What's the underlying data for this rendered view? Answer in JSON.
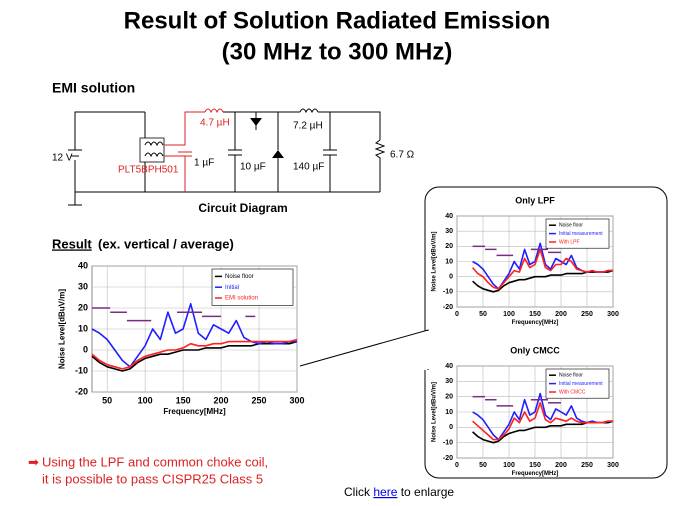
{
  "title": [
    "Result of Solution Radiated Emission",
    "(30 MHz to 300 MHz)"
  ],
  "circuit": {
    "heading": "EMI solution",
    "caption": "Circuit Diagram",
    "labels": {
      "source": "12 V",
      "choke": "PLT5BPH501",
      "l1": "4.7 µH",
      "c1": "1 µF",
      "l2": "7.2 µH",
      "c2": "10 µF",
      "c3": "140 µF",
      "load": "6.7 Ω"
    }
  },
  "result_heading": {
    "underlined": "Result",
    "rest": " (ex. vertical / average)"
  },
  "bullet": [
    "Using the LPF and common choke coil,",
    "it is possible to pass CISPR25 Class 5"
  ],
  "footer": {
    "before": "Click ",
    "link": "here",
    "after": " to enlarge"
  },
  "chart_data": [
    {
      "type": "line",
      "xlabel": "Frequency[MHz]",
      "ylabel": "Noise Level[dBuV/m]",
      "xlim": [
        30,
        300
      ],
      "xticks": [
        50,
        100,
        150,
        200,
        250,
        300
      ],
      "ylim": [
        -20,
        40
      ],
      "yticks": [
        -20,
        -10,
        0,
        10,
        20,
        30,
        40
      ],
      "grid": true,
      "x": [
        30,
        40,
        50,
        60,
        70,
        80,
        90,
        100,
        110,
        120,
        130,
        140,
        150,
        160,
        170,
        180,
        190,
        200,
        210,
        220,
        230,
        240,
        250,
        260,
        270,
        280,
        290,
        300
      ],
      "series": [
        {
          "name": "Noise floor",
          "color": "#000000",
          "values": [
            -3,
            -6,
            -8,
            -9,
            -10,
            -9,
            -6,
            -4,
            -3,
            -2,
            -2,
            -1,
            0,
            0,
            0,
            1,
            1,
            1,
            2,
            2,
            2,
            2,
            3,
            3,
            3,
            3,
            3,
            4
          ]
        },
        {
          "name": "Initial",
          "color": "#1f1fff",
          "values": [
            10,
            8,
            5,
            0,
            -5,
            -8,
            -3,
            2,
            10,
            5,
            18,
            8,
            10,
            22,
            8,
            5,
            12,
            10,
            8,
            14,
            6,
            4,
            3,
            4,
            3,
            3,
            4,
            4
          ]
        },
        {
          "name": "EMI solution",
          "color": "#ff2020",
          "values": [
            -2,
            -5,
            -7,
            -8,
            -9,
            -8,
            -5,
            -3,
            -2,
            -1,
            0,
            0,
            1,
            3,
            2,
            2,
            3,
            3,
            4,
            4,
            4,
            4,
            4,
            4,
            4,
            4,
            4,
            5
          ]
        }
      ],
      "limit_color": "#7a2a8a",
      "limits": [
        {
          "x": [
            30,
            54
          ],
          "y": 20
        },
        {
          "x": [
            54,
            76
          ],
          "y": 18
        },
        {
          "x": [
            76,
            108
          ],
          "y": 14
        },
        {
          "x": [
            142,
            175
          ],
          "y": 18
        },
        {
          "x": [
            175,
            200
          ],
          "y": 16
        },
        {
          "x": [
            200,
            232
          ],
          "y": 22
        },
        {
          "x": [
            232,
            245
          ],
          "y": 16
        }
      ]
    },
    {
      "type": "line",
      "title": "Only LPF",
      "xlabel": "Frequency[MHz]",
      "ylabel": "Noise Level[dBuV/m]",
      "xlim": [
        0,
        300
      ],
      "xticks": [
        0,
        50,
        100,
        150,
        200,
        250,
        300
      ],
      "ylim": [
        -20,
        40
      ],
      "yticks": [
        -20,
        -10,
        0,
        10,
        20,
        30,
        40
      ],
      "grid": true,
      "x": [
        30,
        40,
        50,
        60,
        70,
        80,
        90,
        100,
        110,
        120,
        130,
        140,
        150,
        160,
        170,
        180,
        190,
        200,
        210,
        220,
        230,
        240,
        250,
        260,
        270,
        280,
        290,
        300
      ],
      "series": [
        {
          "name": "Noise floor",
          "color": "#000000",
          "values": [
            -3,
            -6,
            -8,
            -9,
            -10,
            -9,
            -6,
            -4,
            -3,
            -2,
            -2,
            -1,
            0,
            0,
            0,
            1,
            1,
            1,
            2,
            2,
            2,
            2,
            3,
            3,
            3,
            3,
            3,
            4
          ]
        },
        {
          "name": "Initial measurement",
          "color": "#1f1fff",
          "values": [
            10,
            8,
            5,
            0,
            -5,
            -8,
            -3,
            2,
            10,
            5,
            18,
            8,
            10,
            22,
            8,
            5,
            12,
            10,
            8,
            14,
            6,
            4,
            3,
            4,
            3,
            3,
            4,
            4
          ]
        },
        {
          "name": "With LPF",
          "color": "#ff2020",
          "values": [
            6,
            2,
            0,
            -4,
            -7,
            -8,
            -4,
            0,
            4,
            3,
            12,
            6,
            8,
            18,
            6,
            4,
            8,
            8,
            12,
            10,
            5,
            4,
            3,
            4,
            3,
            3,
            4,
            4
          ]
        }
      ],
      "limit_color": "#7a2a8a",
      "limits": [
        {
          "x": [
            30,
            54
          ],
          "y": 20
        },
        {
          "x": [
            54,
            76
          ],
          "y": 18
        },
        {
          "x": [
            76,
            108
          ],
          "y": 14
        },
        {
          "x": [
            142,
            175
          ],
          "y": 18
        },
        {
          "x": [
            175,
            200
          ],
          "y": 16
        },
        {
          "x": [
            200,
            232
          ],
          "y": 22
        }
      ]
    },
    {
      "type": "line",
      "title": "Only CMCC",
      "xlabel": "Frequency[MHz]",
      "ylabel": "Noise Level[dBuV/m]",
      "xlim": [
        0,
        300
      ],
      "xticks": [
        0,
        50,
        100,
        150,
        200,
        250,
        300
      ],
      "ylim": [
        -20,
        40
      ],
      "yticks": [
        -20,
        -10,
        0,
        10,
        20,
        30,
        40
      ],
      "grid": true,
      "x": [
        30,
        40,
        50,
        60,
        70,
        80,
        90,
        100,
        110,
        120,
        130,
        140,
        150,
        160,
        170,
        180,
        190,
        200,
        210,
        220,
        230,
        240,
        250,
        260,
        270,
        280,
        290,
        300
      ],
      "series": [
        {
          "name": "Noise floor",
          "color": "#000000",
          "values": [
            -3,
            -6,
            -8,
            -9,
            -10,
            -9,
            -6,
            -4,
            -3,
            -2,
            -2,
            -1,
            0,
            0,
            0,
            1,
            1,
            1,
            2,
            2,
            2,
            2,
            3,
            3,
            3,
            3,
            3,
            4
          ]
        },
        {
          "name": "Initial measurement",
          "color": "#1f1fff",
          "values": [
            10,
            8,
            5,
            0,
            -5,
            -8,
            -3,
            2,
            10,
            5,
            18,
            8,
            10,
            22,
            8,
            5,
            12,
            10,
            8,
            14,
            6,
            4,
            3,
            4,
            3,
            3,
            4,
            4
          ]
        },
        {
          "name": "With CMCC",
          "color": "#ff2020",
          "values": [
            4,
            1,
            -2,
            -5,
            -8,
            -8,
            -5,
            -1,
            6,
            3,
            10,
            4,
            6,
            16,
            5,
            3,
            6,
            5,
            4,
            6,
            4,
            3,
            3,
            3,
            3,
            3,
            4,
            4
          ]
        }
      ],
      "limit_color": "#7a2a8a",
      "limits": [
        {
          "x": [
            30,
            54
          ],
          "y": 20
        },
        {
          "x": [
            54,
            76
          ],
          "y": 18
        },
        {
          "x": [
            76,
            108
          ],
          "y": 14
        },
        {
          "x": [
            142,
            175
          ],
          "y": 18
        },
        {
          "x": [
            175,
            200
          ],
          "y": 16
        },
        {
          "x": [
            200,
            232
          ],
          "y": 22
        }
      ]
    }
  ]
}
